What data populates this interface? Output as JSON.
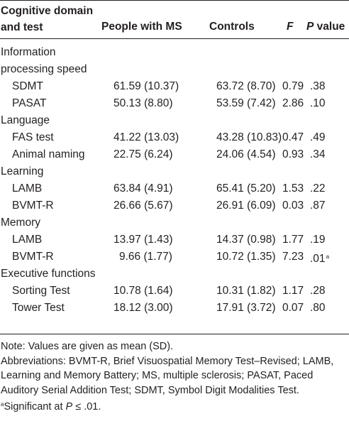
{
  "header": {
    "domain": "Cognitive domain and test",
    "ms": "People with MS",
    "controls": "Controls",
    "f": "F",
    "p_italic": "P",
    "p_rest": " value"
  },
  "groups": [
    {
      "label": "Information processing speed",
      "rows": [
        {
          "test": "SDMT",
          "ms": "61.59 (10.37)",
          "controls": "63.72 (8.70)",
          "f": "0.79",
          "p": ".38",
          "sup": ""
        },
        {
          "test": "PASAT",
          "ms": "50.13 (8.80)",
          "controls": "53.59 (7.42)",
          "f": "2.86",
          "p": ".10",
          "sup": ""
        }
      ]
    },
    {
      "label": "Language",
      "rows": [
        {
          "test": "FAS test",
          "ms": "41.22 (13.03)",
          "controls": "43.28 (10.83)",
          "f": "0.47",
          "p": ".49",
          "sup": ""
        },
        {
          "test": "Animal naming",
          "ms": "22.75 (6.24)",
          "controls": "24.06 (4.54)",
          "f": "0.93",
          "p": ".34",
          "sup": ""
        }
      ]
    },
    {
      "label": "Learning",
      "rows": [
        {
          "test": "LAMB",
          "ms": "63.84 (4.91)",
          "controls": "65.41 (5.20)",
          "f": "1.53",
          "p": ".22",
          "sup": ""
        },
        {
          "test": "BVMT-R",
          "ms": "26.66 (5.67)",
          "controls": "26.91 (6.09)",
          "f": "0.03",
          "p": ".87",
          "sup": ""
        }
      ]
    },
    {
      "label": "Memory",
      "rows": [
        {
          "test": "LAMB",
          "ms": "13.97 (1.43)",
          "controls": "14.37 (0.98)",
          "f": "1.77",
          "p": ".19",
          "sup": ""
        },
        {
          "test": "BVMT-R",
          "ms": "9.66 (1.77)",
          "controls": "10.72 (1.35)",
          "f": "7.23",
          "p": ".01",
          "sup": "a"
        }
      ]
    },
    {
      "label": "Executive functions",
      "rows": [
        {
          "test": "Sorting Test",
          "ms": "10.78 (1.64)",
          "controls": "10.31 (1.82)",
          "f": "1.17",
          "p": ".28",
          "sup": ""
        },
        {
          "test": "Tower Test",
          "ms": "18.12 (3.00)",
          "controls": "17.91 (3.72)",
          "f": "0.07",
          "p": ".80",
          "sup": ""
        }
      ]
    }
  ],
  "notes": {
    "values": "Note: Values are given as mean (SD).",
    "abbreviations": "Abbreviations: BVMT-R, Brief Visuospatial Memory Test–Revised; LAMB, Learning and Memory Battery; MS, multiple sclerosis; PASAT, Paced Auditory Serial Addition Test; SDMT, Symbol Digit Modalities Test.",
    "footnote_mark": "a",
    "footnote_pre": "Significant at ",
    "footnote_p": "P",
    "footnote_post": " ≤ .01."
  }
}
